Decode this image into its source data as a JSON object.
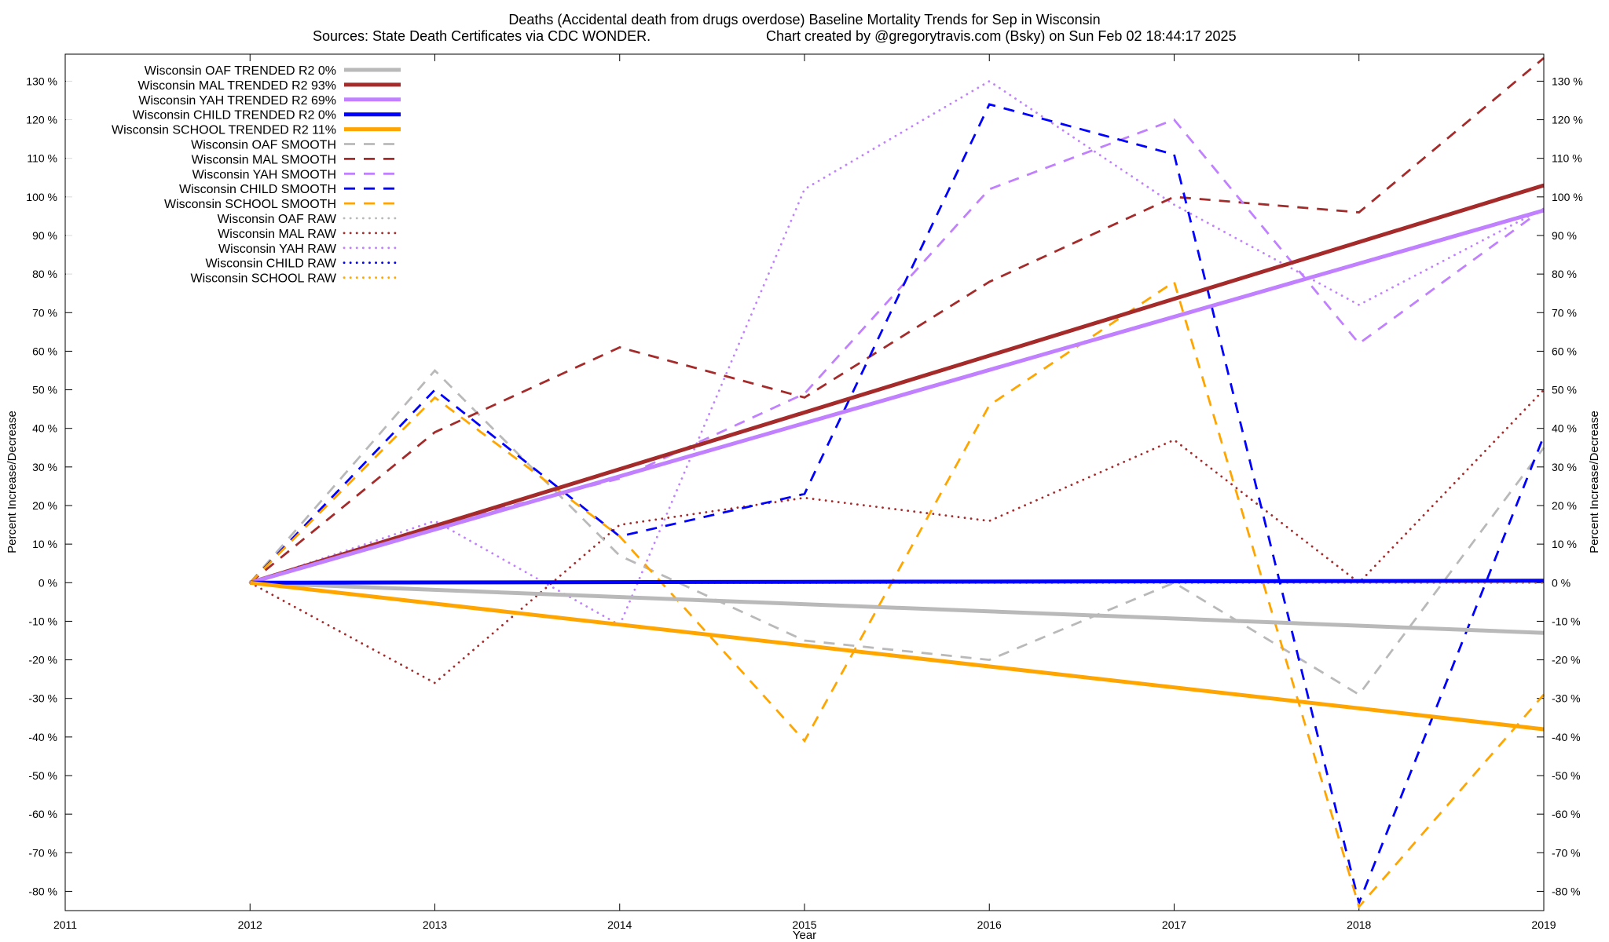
{
  "chart_data": {
    "type": "line",
    "title_line1": "Deaths (Accidental death from drugs overdose)  Baseline Mortality Trends for Sep in Wisconsin",
    "title_line2_left": "Sources: State Death Certificates via CDC WONDER.",
    "title_line2_right": "Chart created by @gregorytravis.com (Bsky) on Sun Feb 02 18:44:17 2025",
    "xlabel": "Year",
    "ylabel_left": "Percent Increase/Decrease",
    "ylabel_right": "Percent Increase/Decrease",
    "xlim": [
      2011,
      2019
    ],
    "ylim": [
      -85,
      137
    ],
    "x_ticks": [
      2011,
      2012,
      2013,
      2014,
      2015,
      2016,
      2017,
      2018,
      2019
    ],
    "x_tick_labels": [
      "2011",
      "2012",
      "2013",
      "2014",
      "2015",
      "2016",
      "2017",
      "2018",
      "2019"
    ],
    "y_ticks": [
      -80,
      -70,
      -60,
      -50,
      -40,
      -30,
      -20,
      -10,
      0,
      10,
      20,
      30,
      40,
      50,
      60,
      70,
      80,
      90,
      100,
      110,
      120,
      130
    ],
    "y_tick_labels": [
      "-80 %",
      "-70 %",
      "-60 %",
      "-50 %",
      "-40 %",
      "-30 %",
      "-20 %",
      "-10 %",
      "0 %",
      "10 %",
      "20 %",
      "30 %",
      "40 %",
      "50 %",
      "60 %",
      "70 %",
      "80 %",
      "90 %",
      "100 %",
      "110 %",
      "120 %",
      "130 %"
    ],
    "legend_position": "top-left",
    "x": [
      2012,
      2013,
      2014,
      2015,
      2016,
      2017,
      2018,
      2019
    ],
    "series": [
      {
        "name": "Wisconsin OAF TRENDED R2  0%",
        "style": "solid",
        "color": "#b9b9b9",
        "x": [
          2012,
          2019
        ],
        "values": [
          0,
          -13
        ]
      },
      {
        "name": "Wisconsin MAL TRENDED R2  93%",
        "style": "solid",
        "color": "#a52a2a",
        "x": [
          2012,
          2019
        ],
        "values": [
          0,
          103
        ]
      },
      {
        "name": "Wisconsin YAH TRENDED R2  69%",
        "style": "solid",
        "color": "#c080ff",
        "x": [
          2012,
          2019
        ],
        "values": [
          0,
          96.5
        ]
      },
      {
        "name": "Wisconsin CHILD TRENDED R2  0%",
        "style": "solid",
        "color": "#0000ff",
        "x": [
          2012,
          2019
        ],
        "values": [
          0,
          0.5
        ]
      },
      {
        "name": "Wisconsin SCHOOL TRENDED R2  11%",
        "style": "solid",
        "color": "#ffa500",
        "x": [
          2012,
          2019
        ],
        "values": [
          0,
          -38
        ]
      },
      {
        "name": "Wisconsin OAF SMOOTH",
        "style": "dashed",
        "color": "#b9b9b9",
        "x": [
          2012,
          2013,
          2014,
          2015,
          2016,
          2017,
          2018,
          2019
        ],
        "values": [
          0,
          55,
          7,
          -15,
          -20,
          0,
          -29,
          35
        ]
      },
      {
        "name": "Wisconsin MAL SMOOTH",
        "style": "dashed",
        "color": "#a52a2a",
        "x": [
          2012,
          2013,
          2014,
          2015,
          2016,
          2017,
          2018,
          2019
        ],
        "values": [
          0,
          39,
          61,
          48,
          78,
          100,
          96,
          136
        ]
      },
      {
        "name": "Wisconsin YAH SMOOTH",
        "style": "dashed",
        "color": "#c080ff",
        "x": [
          2012,
          2013,
          2014,
          2015,
          2016,
          2017,
          2018,
          2019
        ],
        "values": [
          0,
          15,
          27,
          49,
          102,
          120,
          62,
          97
        ]
      },
      {
        "name": "Wisconsin CHILD SMOOTH",
        "style": "dashed",
        "color": "#0000ff",
        "x": [
          2012,
          2013,
          2014,
          2015,
          2016,
          2017,
          2018,
          2019
        ],
        "values": [
          0,
          50,
          12,
          23,
          124,
          111,
          -83,
          38
        ]
      },
      {
        "name": "Wisconsin SCHOOL SMOOTH",
        "style": "dashed",
        "color": "#ffa500",
        "x": [
          2012,
          2013,
          2014,
          2015,
          2016,
          2017,
          2018,
          2019
        ],
        "values": [
          0,
          48,
          12,
          -41,
          46,
          78,
          -84,
          -29
        ]
      },
      {
        "name": "Wisconsin OAF RAW",
        "style": "dotted",
        "color": "#b9b9b9",
        "x": [
          2012,
          2013,
          2014,
          2015,
          2016,
          2017,
          2018,
          2019
        ],
        "values": [
          0,
          0,
          0,
          0,
          0,
          0,
          0,
          0
        ]
      },
      {
        "name": "Wisconsin MAL RAW",
        "style": "dotted",
        "color": "#a52a2a",
        "x": [
          2012,
          2013,
          2014,
          2015,
          2016,
          2017,
          2018,
          2019
        ],
        "values": [
          0,
          -26,
          15,
          22,
          16,
          37,
          0,
          50
        ]
      },
      {
        "name": "Wisconsin YAH RAW",
        "style": "dotted",
        "color": "#c080ff",
        "x": [
          2012,
          2013,
          2014,
          2015,
          2016,
          2017,
          2018,
          2019
        ],
        "values": [
          0,
          16,
          -11,
          102,
          130,
          98,
          72,
          97
        ]
      },
      {
        "name": "Wisconsin CHILD RAW",
        "style": "dotted",
        "color": "#0000ff",
        "x": [
          2012,
          2013,
          2014,
          2015,
          2016,
          2017,
          2018,
          2019
        ],
        "values": [
          0,
          0,
          0,
          0,
          0,
          0,
          0,
          0
        ]
      },
      {
        "name": "Wisconsin SCHOOL RAW",
        "style": "dotted",
        "color": "#ffa500",
        "x": [
          2012,
          2013,
          2014,
          2015,
          2016,
          2017,
          2018,
          2019
        ],
        "values": [
          0,
          0,
          0,
          0,
          0,
          0,
          0,
          0
        ]
      }
    ]
  }
}
